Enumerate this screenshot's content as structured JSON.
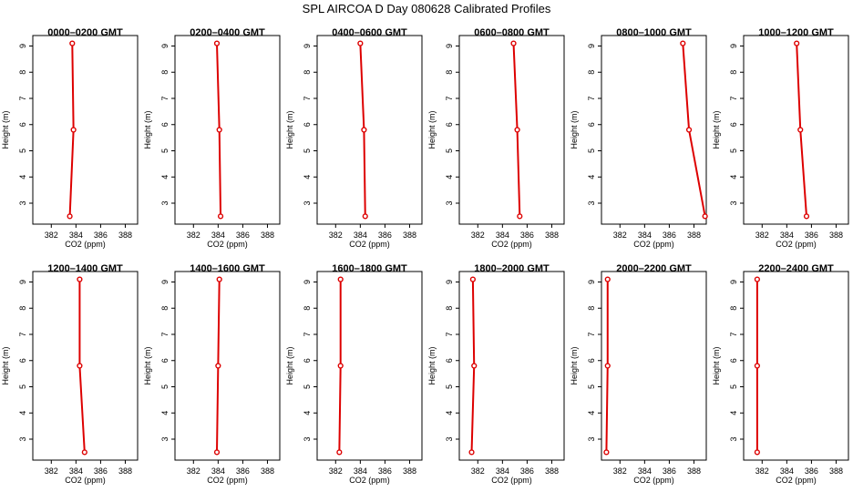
{
  "figure": {
    "title": "SPL AIRCOA D  Day 080628  Calibrated Profiles"
  },
  "style": {
    "line_color": "#dd0000",
    "marker_color": "#dd0000",
    "axis_color": "#000000",
    "background": "#ffffff"
  },
  "chart_data": [
    {
      "type": "line",
      "title": "0000–0200 GMT",
      "xlabel": "CO2 (ppm)",
      "ylabel": "Height (m)",
      "xlim": [
        380.5,
        389
      ],
      "ylim": [
        2.2,
        9.4
      ],
      "xticks": [
        382,
        384,
        386,
        388
      ],
      "yticks": [
        3,
        4,
        5,
        6,
        7,
        8,
        9
      ],
      "x": [
        383.7,
        383.8,
        383.5
      ],
      "y": [
        9.1,
        5.8,
        2.5
      ]
    },
    {
      "type": "line",
      "title": "0200–0400 GMT",
      "xlabel": "CO2 (ppm)",
      "ylabel": "Height (m)",
      "xlim": [
        380.5,
        389
      ],
      "ylim": [
        2.2,
        9.4
      ],
      "xticks": [
        382,
        384,
        386,
        388
      ],
      "yticks": [
        3,
        4,
        5,
        6,
        7,
        8,
        9
      ],
      "x": [
        383.9,
        384.1,
        384.2
      ],
      "y": [
        9.1,
        5.8,
        2.5
      ]
    },
    {
      "type": "line",
      "title": "0400–0600 GMT",
      "xlabel": "CO2 (ppm)",
      "ylabel": "Height (m)",
      "xlim": [
        380.5,
        389
      ],
      "ylim": [
        2.2,
        9.4
      ],
      "xticks": [
        382,
        384,
        386,
        388
      ],
      "yticks": [
        3,
        4,
        5,
        6,
        7,
        8,
        9
      ],
      "x": [
        384.0,
        384.3,
        384.4
      ],
      "y": [
        9.1,
        5.8,
        2.5
      ]
    },
    {
      "type": "line",
      "title": "0600–0800 GMT",
      "xlabel": "CO2 (ppm)",
      "ylabel": "Height (m)",
      "xlim": [
        380.5,
        389
      ],
      "ylim": [
        2.2,
        9.4
      ],
      "xticks": [
        382,
        384,
        386,
        388
      ],
      "yticks": [
        3,
        4,
        5,
        6,
        7,
        8,
        9
      ],
      "x": [
        384.9,
        385.2,
        385.4
      ],
      "y": [
        9.1,
        5.8,
        2.5
      ]
    },
    {
      "type": "line",
      "title": "0800–1000 GMT",
      "xlabel": "CO2 (ppm)",
      "ylabel": "Height (m)",
      "xlim": [
        380.5,
        389
      ],
      "ylim": [
        2.2,
        9.4
      ],
      "xticks": [
        382,
        384,
        386,
        388
      ],
      "yticks": [
        3,
        4,
        5,
        6,
        7,
        8,
        9
      ],
      "x": [
        387.1,
        387.6,
        388.9
      ],
      "y": [
        9.1,
        5.8,
        2.5
      ]
    },
    {
      "type": "line",
      "title": "1000–1200 GMT",
      "xlabel": "CO2 (ppm)",
      "ylabel": "Height (m)",
      "xlim": [
        380.5,
        389
      ],
      "ylim": [
        2.2,
        9.4
      ],
      "xticks": [
        382,
        384,
        386,
        388
      ],
      "yticks": [
        3,
        4,
        5,
        6,
        7,
        8,
        9
      ],
      "x": [
        384.8,
        385.1,
        385.6
      ],
      "y": [
        9.1,
        5.8,
        2.5
      ]
    },
    {
      "type": "line",
      "title": "1200–1400 GMT",
      "xlabel": "CO2 (ppm)",
      "ylabel": "Height (m)",
      "xlim": [
        380.5,
        389
      ],
      "ylim": [
        2.2,
        9.4
      ],
      "xticks": [
        382,
        384,
        386,
        388
      ],
      "yticks": [
        3,
        4,
        5,
        6,
        7,
        8,
        9
      ],
      "x": [
        384.3,
        384.3,
        384.7
      ],
      "y": [
        9.1,
        5.8,
        2.5
      ]
    },
    {
      "type": "line",
      "title": "1400–1600 GMT",
      "xlabel": "CO2 (ppm)",
      "ylabel": "Height (m)",
      "xlim": [
        380.5,
        389
      ],
      "ylim": [
        2.2,
        9.4
      ],
      "xticks": [
        382,
        384,
        386,
        388
      ],
      "yticks": [
        3,
        4,
        5,
        6,
        7,
        8,
        9
      ],
      "x": [
        384.1,
        384.0,
        383.9
      ],
      "y": [
        9.1,
        5.8,
        2.5
      ]
    },
    {
      "type": "line",
      "title": "1600–1800 GMT",
      "xlabel": "CO2 (ppm)",
      "ylabel": "Height (m)",
      "xlim": [
        380.5,
        389
      ],
      "ylim": [
        2.2,
        9.4
      ],
      "xticks": [
        382,
        384,
        386,
        388
      ],
      "yticks": [
        3,
        4,
        5,
        6,
        7,
        8,
        9
      ],
      "x": [
        382.4,
        382.4,
        382.3
      ],
      "y": [
        9.1,
        5.8,
        2.5
      ]
    },
    {
      "type": "line",
      "title": "1800–2000 GMT",
      "xlabel": "CO2 (ppm)",
      "ylabel": "Height (m)",
      "xlim": [
        380.5,
        389
      ],
      "ylim": [
        2.2,
        9.4
      ],
      "xticks": [
        382,
        384,
        386,
        388
      ],
      "yticks": [
        3,
        4,
        5,
        6,
        7,
        8,
        9
      ],
      "x": [
        381.6,
        381.7,
        381.5
      ],
      "y": [
        9.1,
        5.8,
        2.5
      ]
    },
    {
      "type": "line",
      "title": "2000–2200 GMT",
      "xlabel": "CO2 (ppm)",
      "ylabel": "Height (m)",
      "xlim": [
        380.5,
        389
      ],
      "ylim": [
        2.2,
        9.4
      ],
      "xticks": [
        382,
        384,
        386,
        388
      ],
      "yticks": [
        3,
        4,
        5,
        6,
        7,
        8,
        9
      ],
      "x": [
        381.0,
        381.0,
        380.9
      ],
      "y": [
        9.1,
        5.8,
        2.5
      ]
    },
    {
      "type": "line",
      "title": "2200–2400 GMT",
      "xlabel": "CO2 (ppm)",
      "ylabel": "Height (m)",
      "xlim": [
        380.5,
        389
      ],
      "ylim": [
        2.2,
        9.4
      ],
      "xticks": [
        382,
        384,
        386,
        388
      ],
      "yticks": [
        3,
        4,
        5,
        6,
        7,
        8,
        9
      ],
      "x": [
        381.6,
        381.6,
        381.6
      ],
      "y": [
        9.1,
        5.8,
        2.5
      ]
    }
  ]
}
